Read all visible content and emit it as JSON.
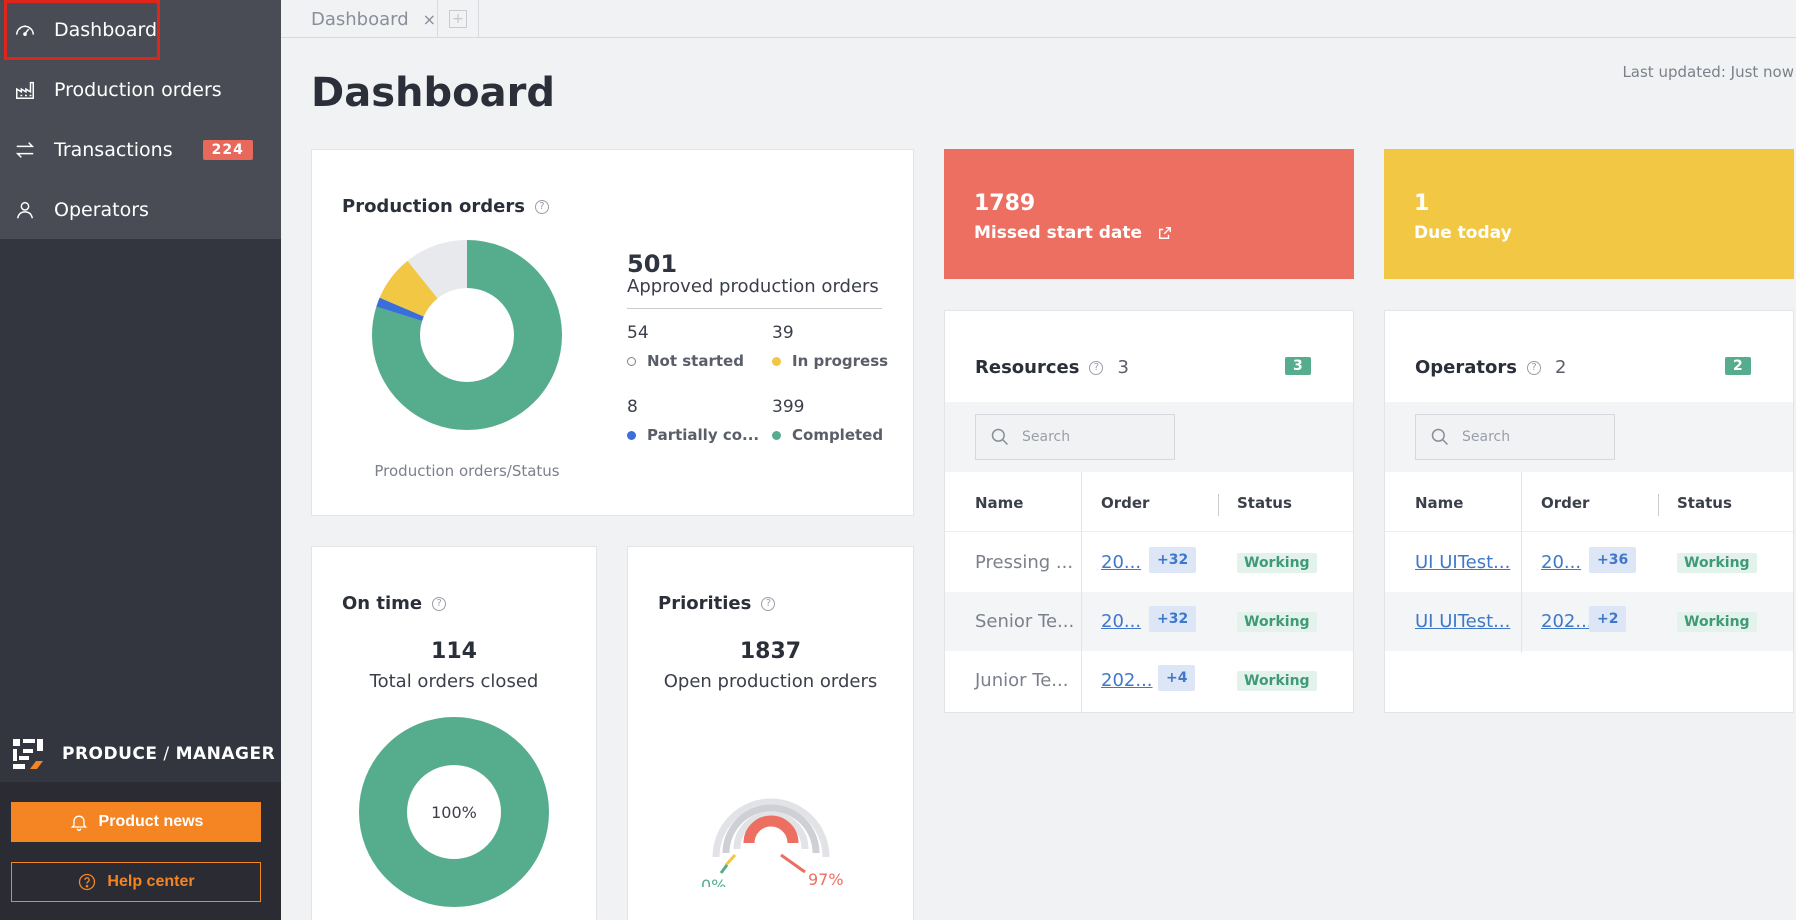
{
  "sidebar": {
    "items": [
      {
        "label": "Dashboard",
        "icon": "gauge-icon"
      },
      {
        "label": "Production orders",
        "icon": "factory-icon"
      },
      {
        "label": "Transactions",
        "icon": "arrows-icon",
        "badge": "224"
      },
      {
        "label": "Operators",
        "icon": "person-icon"
      }
    ],
    "brand_bold": "PRODUCE",
    "brand_sep": " / ",
    "brand_thin": "MANAGER",
    "news_button": "Product news",
    "help_button": "Help center"
  },
  "tabs": [
    {
      "label": "Dashboard",
      "close": "×"
    }
  ],
  "tab_add": "+",
  "page": {
    "title": "Dashboard",
    "last_updated": "Last updated: Just now"
  },
  "production_orders": {
    "title": "Production orders",
    "help": "?",
    "total": "501",
    "total_label": "Approved production orders",
    "stats": [
      {
        "value": "54",
        "label": "Not started",
        "color": "#ffffff"
      },
      {
        "value": "39",
        "label": "In progress",
        "color": "#f2c744"
      },
      {
        "value": "8",
        "label": "Partially co...",
        "color": "#3a6fd9"
      },
      {
        "value": "399",
        "label": "Completed",
        "color": "#55ad8d"
      }
    ],
    "caption": "Production orders/Status"
  },
  "kpis": [
    {
      "value": "1789",
      "label": "Missed start date",
      "color": "#ec6f61"
    },
    {
      "value": "1",
      "label": "Due today",
      "color": "#f2c744"
    }
  ],
  "resources": {
    "title": "Resources",
    "help": "?",
    "count": "3",
    "badge": "3",
    "search_placeholder": "Search",
    "columns": [
      "Name",
      "Order",
      "Status"
    ],
    "rows": [
      {
        "name": "Pressing ...",
        "order": "20...",
        "extra": "+32",
        "status": "Working"
      },
      {
        "name": "Senior Te...",
        "order": "20...",
        "extra": "+32",
        "status": "Working"
      },
      {
        "name": "Junior Te...",
        "order": "202...",
        "extra": "+4",
        "status": "Working"
      }
    ]
  },
  "operators": {
    "title": "Operators",
    "help": "?",
    "count": "2",
    "badge": "2",
    "search_placeholder": "Search",
    "columns": [
      "Name",
      "Order",
      "Status"
    ],
    "rows": [
      {
        "name": "UI UITest...",
        "order": "20...",
        "extra": "+36",
        "status": "Working"
      },
      {
        "name": "UI UITest...",
        "order": "202...",
        "extra": "+2",
        "status": "Working"
      }
    ]
  },
  "on_time": {
    "title": "On time",
    "help": "?",
    "total": "114",
    "label": "Total orders closed",
    "percent": "100%",
    "fraction": 1.0
  },
  "priorities": {
    "title": "Priorities",
    "help": "?",
    "total": "1837",
    "label": "Open production orders",
    "low_label": "0%",
    "high_label": "97%"
  },
  "colors": {
    "green": "#55ad8d",
    "yellow": "#f2c744",
    "red": "#ec6f61",
    "blue": "#3a6fd9",
    "orange": "#f58423"
  }
}
